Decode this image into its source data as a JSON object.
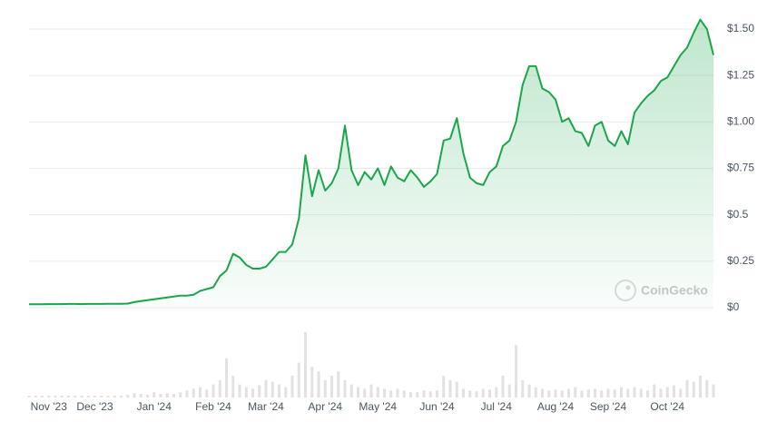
{
  "chart_data": {
    "type": "line",
    "categories": [
      null,
      null,
      null,
      "Nov '23",
      null,
      null,
      null,
      null,
      null,
      null,
      "Dec '23",
      null,
      null,
      null,
      null,
      null,
      null,
      null,
      null,
      "Jan '24",
      null,
      null,
      null,
      null,
      null,
      null,
      null,
      null,
      "Feb '24",
      null,
      null,
      null,
      null,
      null,
      null,
      null,
      "Mar '24",
      null,
      null,
      null,
      null,
      null,
      null,
      null,
      null,
      "Apr '24",
      null,
      null,
      null,
      null,
      null,
      null,
      null,
      "May '24",
      null,
      null,
      null,
      null,
      null,
      null,
      null,
      null,
      "Jun '24",
      null,
      null,
      null,
      null,
      null,
      null,
      null,
      null,
      "Jul '24",
      null,
      null,
      null,
      null,
      null,
      null,
      null,
      null,
      "Aug '24",
      null,
      null,
      null,
      null,
      null,
      null,
      null,
      "Sep '24",
      null,
      null,
      null,
      null,
      null,
      null,
      null,
      null,
      "Oct '24",
      null,
      null,
      null,
      null,
      null,
      null,
      null
    ],
    "series": [
      {
        "color": "#1aa64a",
        "values": [
          0.018,
          0.018,
          0.018,
          0.019,
          0.019,
          0.019,
          0.02,
          0.02,
          0.019,
          0.02,
          0.02,
          0.02,
          0.021,
          0.021,
          0.021,
          0.022,
          0.03,
          0.035,
          0.04,
          0.045,
          0.05,
          0.055,
          0.06,
          0.065,
          0.065,
          0.07,
          0.09,
          0.1,
          0.11,
          0.17,
          0.2,
          0.29,
          0.27,
          0.23,
          0.21,
          0.21,
          0.22,
          0.26,
          0.3,
          0.3,
          0.34,
          0.48,
          0.82,
          0.6,
          0.74,
          0.63,
          0.67,
          0.75,
          0.98,
          0.74,
          0.66,
          0.73,
          0.69,
          0.75,
          0.66,
          0.76,
          0.7,
          0.68,
          0.74,
          0.7,
          0.65,
          0.68,
          0.72,
          0.9,
          0.91,
          1.02,
          0.83,
          0.7,
          0.67,
          0.66,
          0.73,
          0.76,
          0.87,
          0.9,
          1.0,
          1.2,
          1.3,
          1.3,
          1.18,
          1.16,
          1.12,
          1.0,
          1.02,
          0.95,
          0.94,
          0.87,
          0.98,
          1.0,
          0.9,
          0.87,
          0.95,
          0.88,
          1.05,
          1.1,
          1.14,
          1.17,
          1.22,
          1.24,
          1.3,
          1.36,
          1.4,
          1.48,
          1.55,
          1.5,
          1.36
        ]
      }
    ],
    "volume": {
      "color": "#e2e2e2",
      "values": [
        2,
        2,
        2,
        2,
        2,
        2,
        2,
        2,
        2,
        2,
        2,
        2,
        2,
        2,
        2,
        3,
        5,
        4,
        3,
        6,
        4,
        5,
        4,
        6,
        8,
        10,
        12,
        9,
        15,
        20,
        45,
        25,
        15,
        12,
        10,
        14,
        20,
        18,
        15,
        12,
        25,
        40,
        75,
        35,
        30,
        20,
        25,
        30,
        20,
        15,
        12,
        10,
        15,
        12,
        10,
        8,
        10,
        8,
        6,
        6,
        8,
        7,
        8,
        25,
        20,
        18,
        10,
        8,
        7,
        10,
        9,
        12,
        25,
        15,
        60,
        20,
        15,
        12,
        10,
        8,
        9,
        8,
        10,
        12,
        8,
        9,
        10,
        8,
        10,
        9,
        12,
        10,
        12,
        10,
        8,
        15,
        10,
        12,
        14,
        10,
        20,
        18,
        25,
        20,
        15
      ]
    },
    "ylim": [
      0,
      1.6
    ],
    "yticks": [
      {
        "value": 0,
        "label": "$0"
      },
      {
        "value": 0.25,
        "label": "$0.25"
      },
      {
        "value": 0.5,
        "label": "$0.5"
      },
      {
        "value": 0.75,
        "label": "$0.75"
      },
      {
        "value": 1.0,
        "label": "$1.00"
      },
      {
        "value": 1.25,
        "label": "$1.25"
      },
      {
        "value": 1.5,
        "label": "$1.50"
      }
    ],
    "grid": true,
    "watermark": "CoinGecko"
  }
}
